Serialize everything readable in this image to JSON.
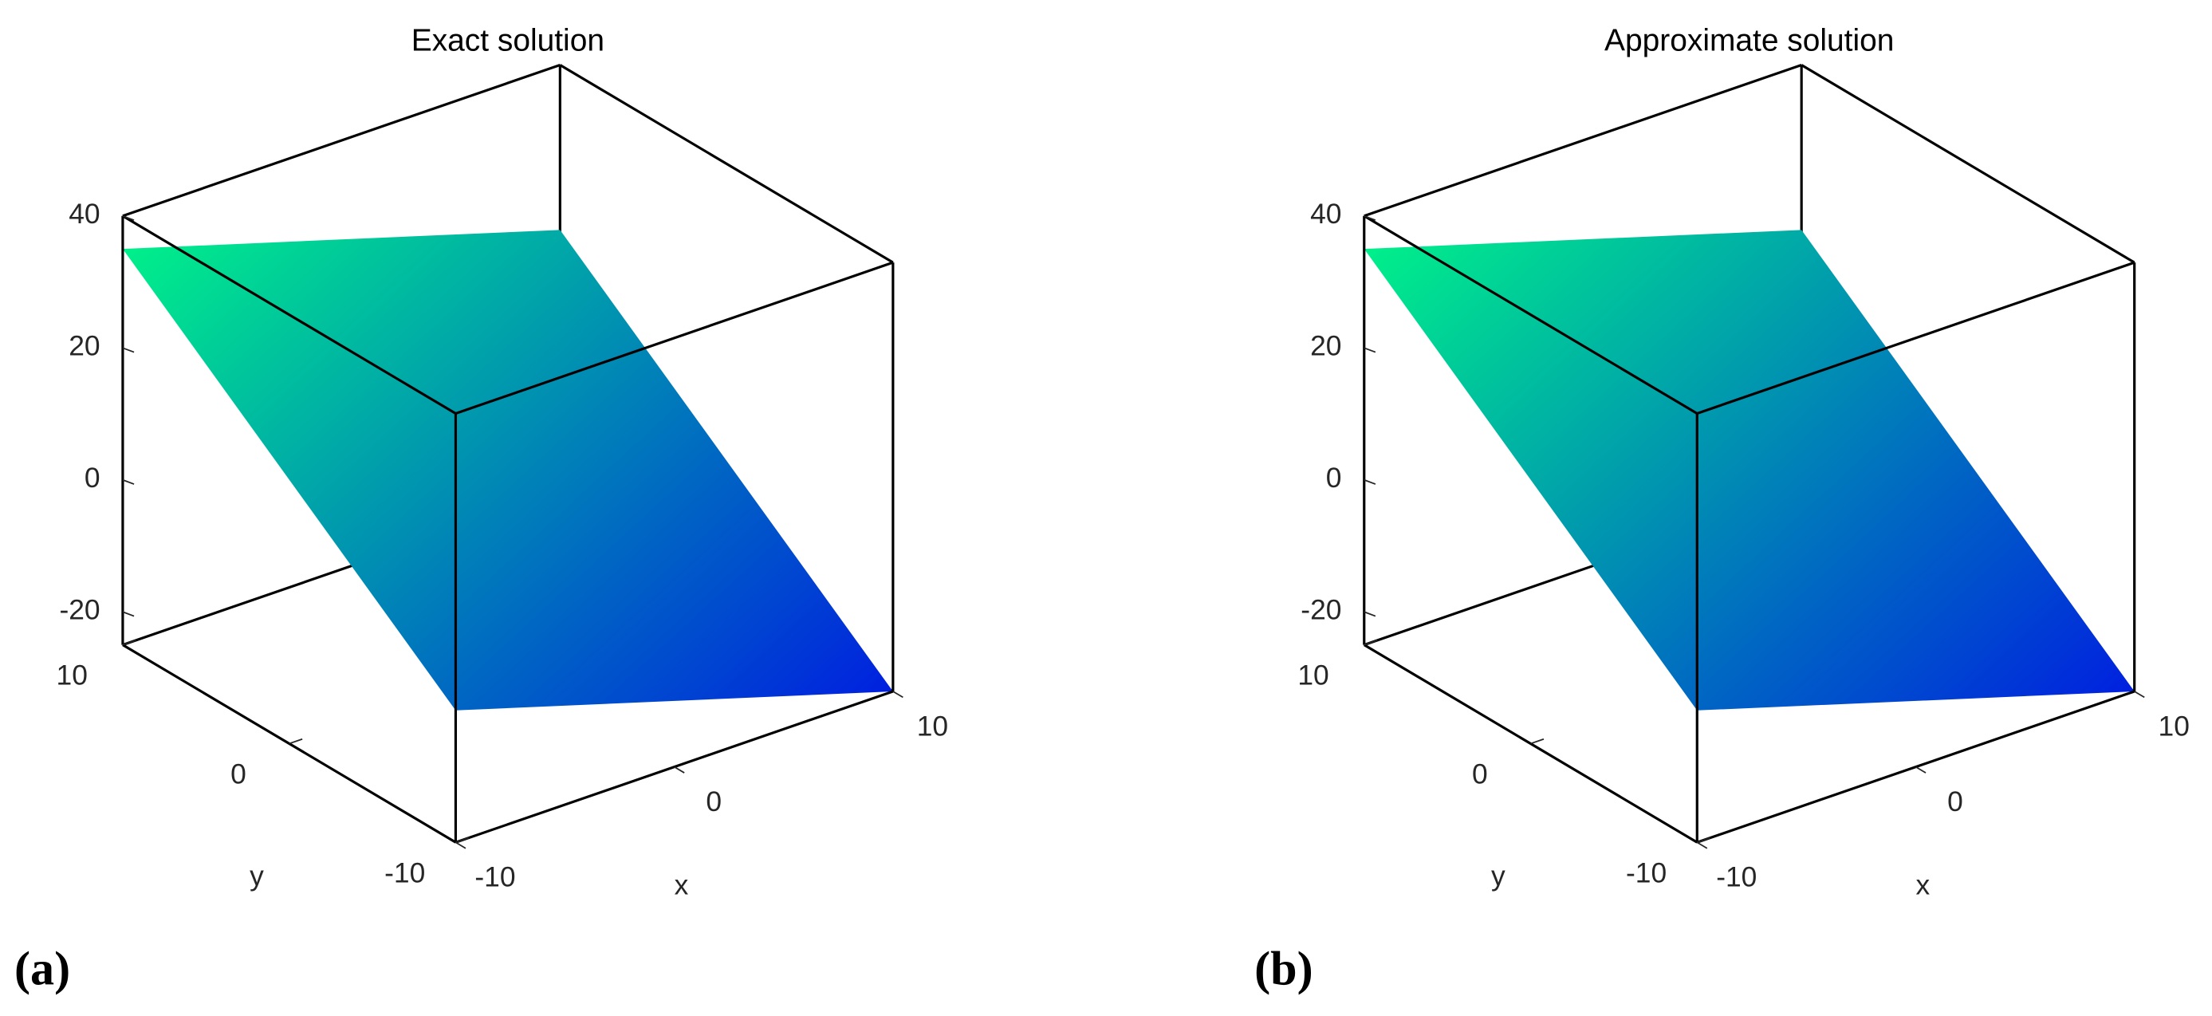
{
  "chart_data": [
    {
      "type": "surface",
      "title": "Exact solution",
      "panel_label": "(a)",
      "xlabel": "x",
      "ylabel": "y",
      "x": [
        -10,
        10
      ],
      "y": [
        -10,
        10
      ],
      "z": [
        [
          -5,
          -25
        ],
        [
          35,
          15
        ]
      ],
      "xlim": [
        -10,
        10
      ],
      "ylim": [
        -10,
        10
      ],
      "zlim": [
        -25,
        40
      ],
      "xticks": [
        -10,
        0,
        10
      ],
      "yticks": [
        -10,
        0,
        10
      ],
      "zticks": [
        -20,
        0,
        20,
        40
      ],
      "colormap": [
        "#0020e0",
        "#00f08a"
      ]
    },
    {
      "type": "surface",
      "title": "Approximate solution",
      "panel_label": "(b)",
      "xlabel": "x",
      "ylabel": "y",
      "x": [
        -10,
        10
      ],
      "y": [
        -10,
        10
      ],
      "z": [
        [
          -5,
          -25
        ],
        [
          35,
          15
        ]
      ],
      "xlim": [
        -10,
        10
      ],
      "ylim": [
        -10,
        10
      ],
      "zlim": [
        -25,
        40
      ],
      "xticks": [
        -10,
        0,
        10
      ],
      "yticks": [
        -10,
        0,
        10
      ],
      "zticks": [
        -20,
        0,
        20,
        40
      ],
      "colormap": [
        "#0020e0",
        "#00f08a"
      ]
    }
  ]
}
